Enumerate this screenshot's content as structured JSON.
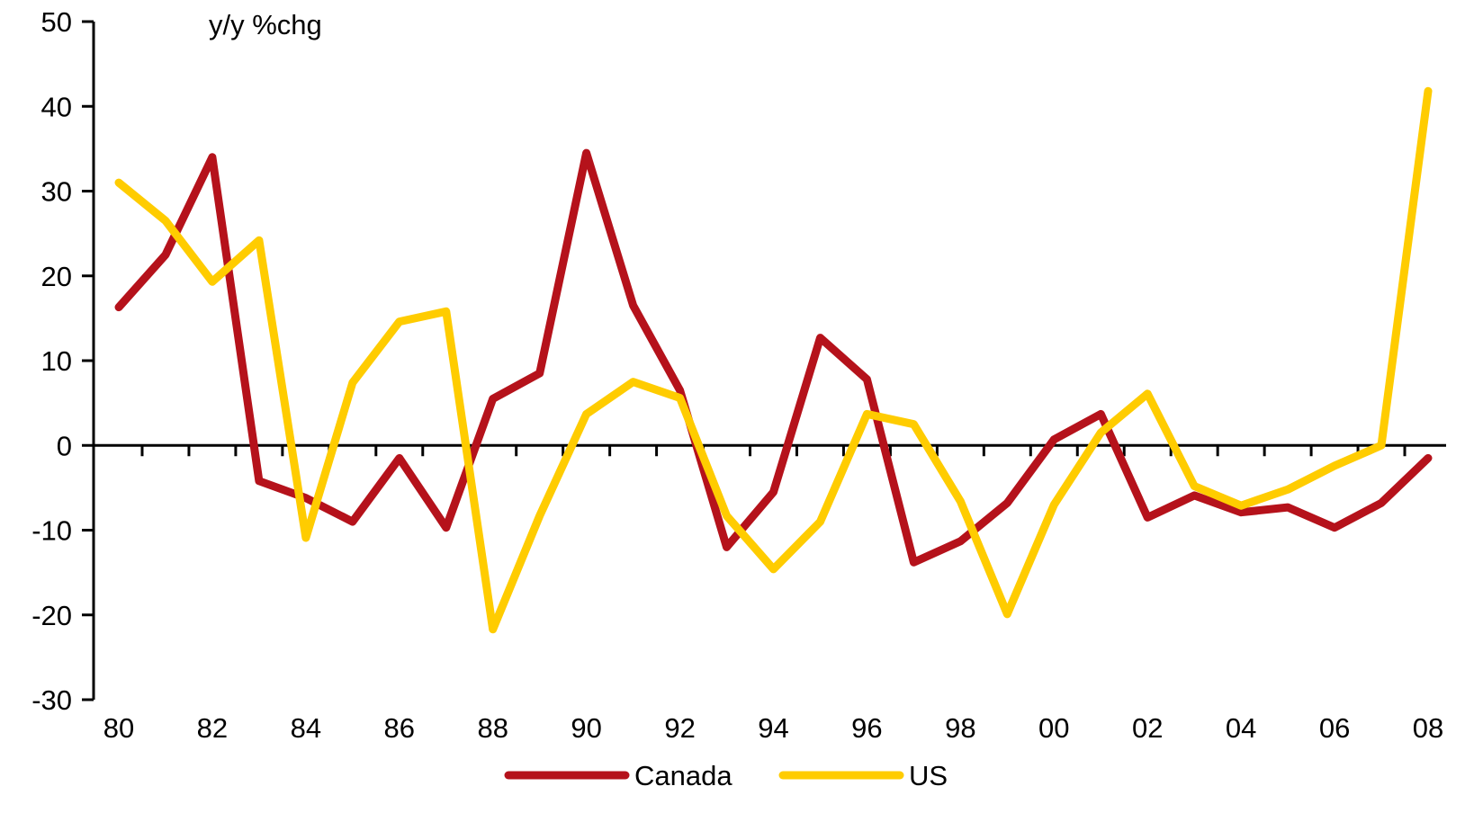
{
  "chart_data": {
    "type": "line",
    "unit_label": "y/y %chg",
    "x": [
      1980,
      1981,
      1982,
      1983,
      1984,
      1985,
      1986,
      1987,
      1988,
      1989,
      1990,
      1991,
      1992,
      1993,
      1994,
      1995,
      1996,
      1997,
      1998,
      1999,
      2000,
      2001,
      2002,
      2003,
      2004,
      2005,
      2006,
      2007,
      2008
    ],
    "x_tick_labels": [
      "80",
      "82",
      "84",
      "86",
      "88",
      "90",
      "92",
      "94",
      "96",
      "98",
      "00",
      "02",
      "04",
      "06",
      "08"
    ],
    "x_tick_values": [
      1980,
      1982,
      1984,
      1986,
      1988,
      1990,
      1992,
      1994,
      1996,
      1998,
      2000,
      2002,
      2004,
      2006,
      2008
    ],
    "xlim": [
      1980,
      2008
    ],
    "ylim": [
      -30,
      50
    ],
    "y_tick_values": [
      50,
      40,
      30,
      20,
      10,
      0,
      -10,
      -20,
      -30
    ],
    "y_tick_labels": [
      "50",
      "40",
      "30",
      "20",
      "10",
      "0",
      "-10",
      "-20",
      "-30"
    ],
    "series": [
      {
        "name": "Canada",
        "color": "#B5121B",
        "values": [
          16.3,
          22.5,
          34.0,
          -4.2,
          -6.2,
          -9.0,
          -1.5,
          -9.7,
          5.5,
          8.5,
          34.5,
          16.5,
          6.5,
          -12.0,
          -5.5,
          12.7,
          7.8,
          -13.8,
          -11.3,
          -6.8,
          0.7,
          3.7,
          -8.5,
          -5.9,
          -7.9,
          -7.3,
          -9.7,
          -6.8,
          -1.5
        ]
      },
      {
        "name": "US",
        "color": "#FFCC00",
        "values": [
          31.0,
          26.5,
          19.3,
          24.2,
          -10.9,
          7.4,
          14.6,
          15.8,
          -21.7,
          -8.3,
          3.7,
          7.5,
          5.6,
          -8.3,
          -14.6,
          -9.0,
          3.7,
          2.5,
          -6.6,
          -19.9,
          -7.0,
          1.5,
          6.1,
          -4.8,
          -7.1,
          -5.2,
          -2.4,
          0.0,
          41.8
        ]
      }
    ],
    "legend": {
      "position": "bottom"
    },
    "grid": false
  }
}
